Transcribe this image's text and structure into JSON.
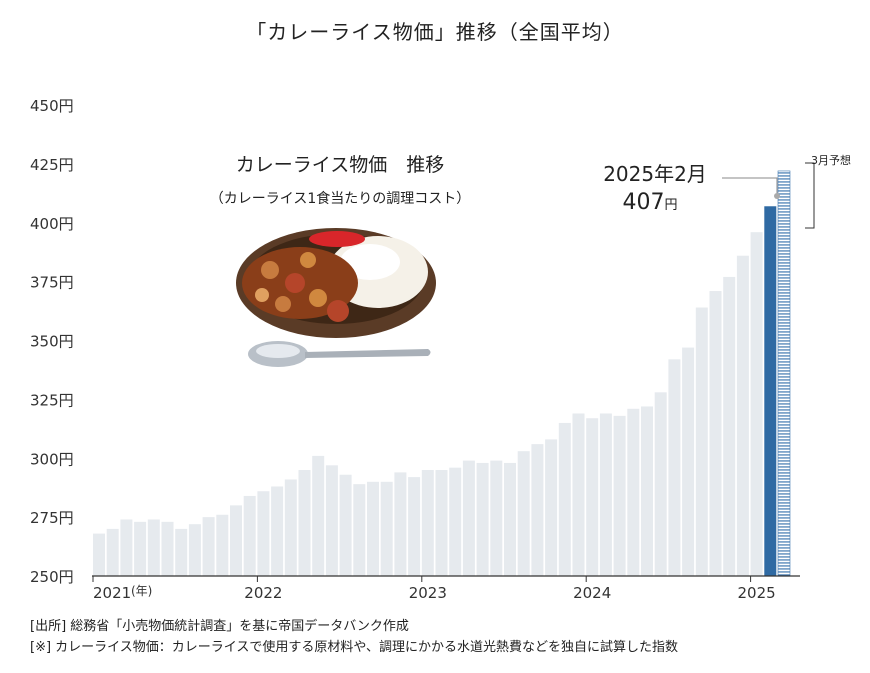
{
  "title": "「カレーライス物価」推移（全国平均）",
  "inset": {
    "title": "カレーライス物価　推移",
    "subtitle": "（カレーライス1食当たりの調理コスト）"
  },
  "callout": {
    "date": "2025年2月",
    "value": "407",
    "unit": "円"
  },
  "forecast_label": "3月予想",
  "footer": {
    "source": "[出所] 総務省「小売物価統計調査」を基に帝国データバンク作成",
    "note": "[※] カレーライス物価：カレーライスで使用する原材料や、調理にかかる水道光熱費などを独自に試算した指数"
  },
  "colors": {
    "bar": "#e6eaee",
    "highlight": "#2f6aa3",
    "forecast": "#3f78b0",
    "axis": "#333333"
  },
  "chart_data": {
    "type": "bar",
    "ylim": [
      250,
      450
    ],
    "y_ticks": [
      250,
      275,
      300,
      325,
      350,
      375,
      400,
      425,
      450
    ],
    "y_tick_labels": [
      "250円",
      "275円",
      "300円",
      "325円",
      "350円",
      "375円",
      "400円",
      "425円",
      "450円"
    ],
    "x_tick_labels": [
      {
        "label": "2021",
        "suffix": "(年)",
        "index": 0
      },
      {
        "label": "2022",
        "index": 12
      },
      {
        "label": "2023",
        "index": 24
      },
      {
        "label": "2024",
        "index": 36
      },
      {
        "label": "2025",
        "index": 48
      }
    ],
    "values": [
      268,
      270,
      274,
      273,
      274,
      273,
      270,
      272,
      275,
      276,
      280,
      284,
      286,
      288,
      291,
      295,
      301,
      297,
      293,
      289,
      290,
      290,
      294,
      292,
      295,
      295,
      296,
      299,
      298,
      299,
      298,
      303,
      306,
      308,
      315,
      319,
      317,
      319,
      318,
      321,
      322,
      328,
      342,
      347,
      364,
      371,
      377,
      386,
      396,
      407
    ],
    "highlight_index": 49,
    "forecast": {
      "value": 422,
      "label": "3月予想"
    }
  }
}
